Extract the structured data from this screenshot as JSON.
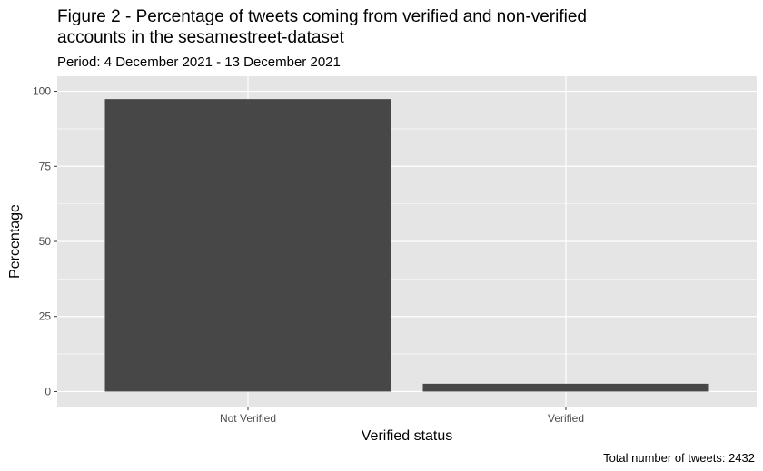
{
  "chart_data": {
    "type": "bar",
    "title_line1": "Figure 2 - Percentage of tweets coming from verified and non-verified",
    "title_line2": "accounts in the sesamestreet-dataset",
    "subtitle": "Period: 4 December 2021 - 13 December 2021",
    "xlabel": "Verified status",
    "ylabel": "Percentage",
    "categories": [
      "Not Verified",
      "Verified"
    ],
    "values": [
      97.4,
      2.6
    ],
    "ylim": [
      0,
      100
    ],
    "yticks": [
      0,
      25,
      50,
      75,
      100
    ],
    "caption": "Total number of tweets: 2432",
    "grid": true,
    "bar_color": "#474747",
    "panel_color": "#e5e5e5",
    "grid_color": "#ffffff"
  }
}
